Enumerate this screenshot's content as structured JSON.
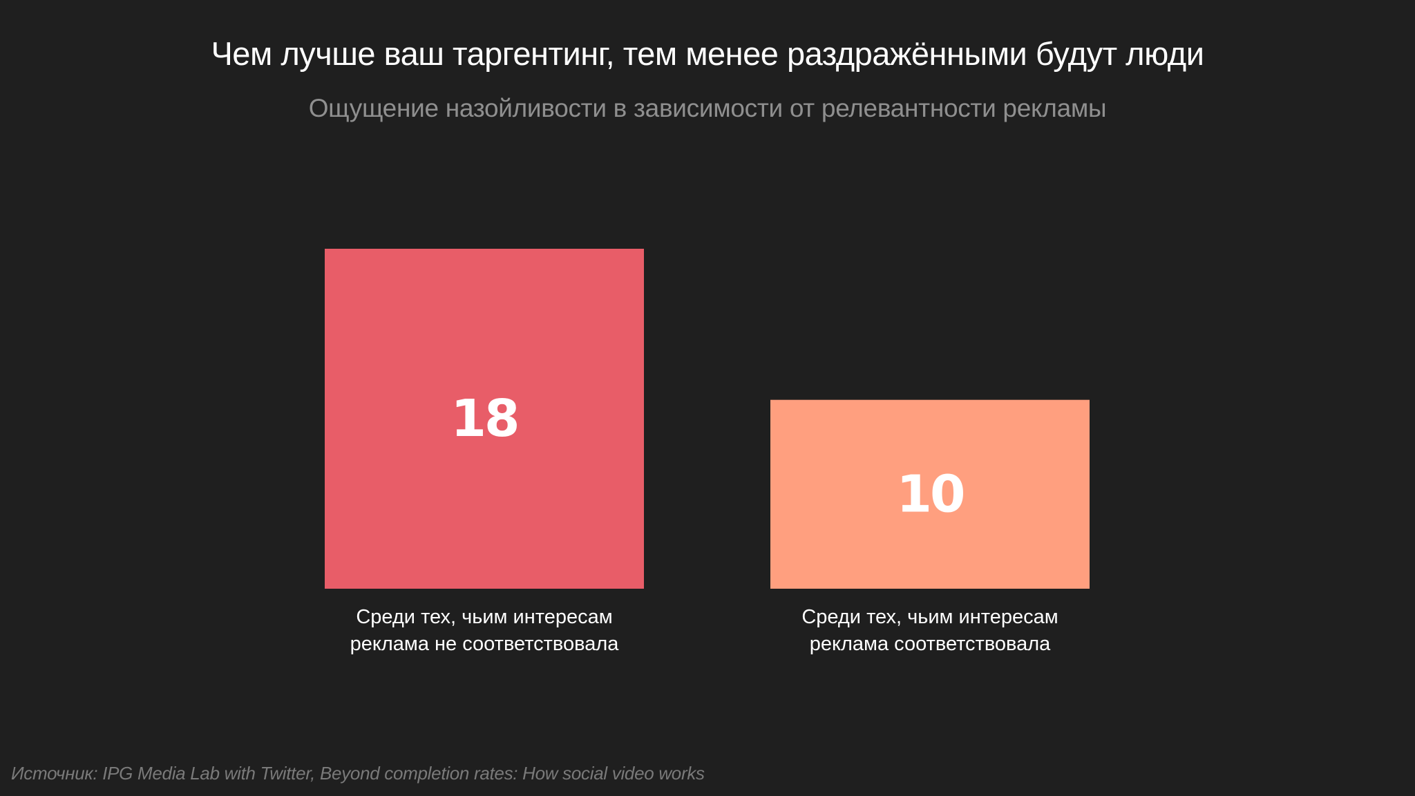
{
  "chart_data": {
    "type": "bar",
    "title": "Чем лучше ваш таргентинг, тем менее раздражёнными будут люди",
    "subtitle": "Ощущение назойливости в зависимости от релевантности рекламы",
    "categories": [
      [
        "Среди тех, чьим интересам",
        "реклама не соответствовала"
      ],
      [
        "Среди тех, чьим интересам",
        "реклама соответствовала"
      ]
    ],
    "values": [
      18,
      10
    ],
    "colors": [
      "#e85d68",
      "#ff9f7f"
    ],
    "xlabel": "",
    "ylabel": "",
    "ylim": [
      0,
      18
    ],
    "grid": false,
    "show_axes": false,
    "data_labels": "inside-center"
  },
  "source": "Источник: IPG Media Lab with Twitter, Beyond completion rates: How social video works"
}
